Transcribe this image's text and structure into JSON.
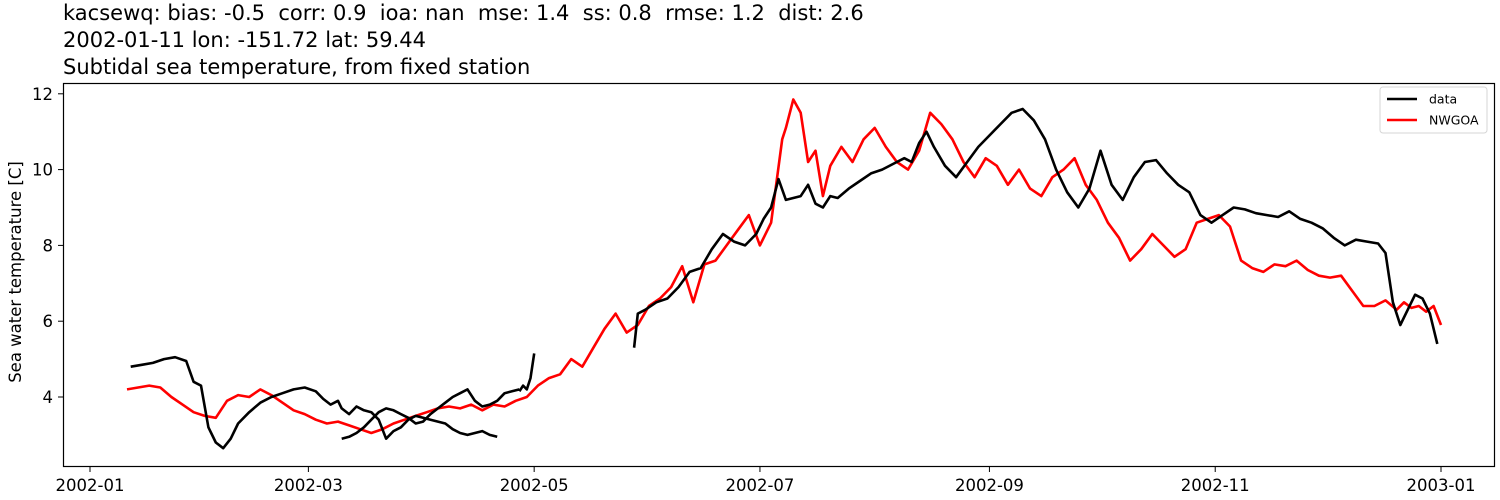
{
  "title": {
    "line1": "kacsewq: bias: -0.5  corr: 0.9  ioa: nan  mse: 1.4  ss: 0.8  rmse: 1.2  dist: 2.6",
    "line2": "2002-01-11 lon: -151.72 lat: 59.44",
    "line3": "Subtidal sea temperature, from fixed station"
  },
  "colors": {
    "data": "#000000",
    "model": "#ff0000",
    "axes": "#000000",
    "background": "#ffffff"
  },
  "chart_data": {
    "type": "line",
    "title": "kacsewq: bias: -0.5  corr: 0.9  ioa: nan  mse: 1.4  ss: 0.8  rmse: 1.2  dist: 2.6 / 2002-01-11 lon: -151.72 lat: 59.44 / Subtidal sea temperature, from fixed station",
    "xlabel": "",
    "ylabel": "Sea water temperature [C]",
    "xlim": [
      "2001-12-19",
      "2003-01-14"
    ],
    "ylim": [
      2.2,
      12.3
    ],
    "x_ticks": [
      "2002-01",
      "2002-03",
      "2002-05",
      "2002-07",
      "2002-09",
      "2002-11",
      "2003-01"
    ],
    "y_ticks": [
      4,
      6,
      8,
      10,
      12
    ],
    "grid": false,
    "legend": {
      "position": "upper right",
      "entries": [
        "data",
        "NWGOA"
      ]
    },
    "series": [
      {
        "name": "data",
        "color": "#000000",
        "segments": [
          {
            "x_day_of_year": [
              11,
              14,
              17,
              20,
              23,
              26,
              28,
              30,
              32,
              34,
              36,
              38,
              40,
              43,
              46,
              49,
              52,
              55,
              58,
              61,
              63,
              65,
              67,
              68,
              70,
              72,
              74,
              76,
              78,
              80,
              82,
              84,
              86,
              88,
              90,
              92,
              94,
              96,
              98,
              100,
              102,
              104,
              106,
              108,
              110
            ],
            "y": [
              4.8,
              4.85,
              4.9,
              5.0,
              5.05,
              4.95,
              4.4,
              4.3,
              3.2,
              2.8,
              2.65,
              2.9,
              3.3,
              3.6,
              3.85,
              4.0,
              4.1,
              4.2,
              4.25,
              4.15,
              3.95,
              3.8,
              3.9,
              3.7,
              3.55,
              3.75,
              3.65,
              3.6,
              3.4,
              2.9,
              3.1,
              3.2,
              3.4,
              3.5,
              3.45,
              3.4,
              3.35,
              3.3,
              3.15,
              3.05,
              3.0,
              3.05,
              3.1,
              3.0,
              2.95
            ]
          },
          {
            "x_day_of_year": [
              68,
              70,
              72,
              74,
              76,
              78,
              80,
              82,
              84,
              86,
              88,
              90,
              92,
              94,
              96,
              98,
              100,
              102,
              104,
              106,
              108,
              110,
              112,
              114,
              116
            ],
            "y": [
              2.9,
              2.95,
              3.05,
              3.2,
              3.4,
              3.6,
              3.7,
              3.65,
              3.55,
              3.45,
              3.3,
              3.35,
              3.55,
              3.7,
              3.85,
              4.0,
              4.1,
              4.2,
              3.9,
              3.75,
              3.8,
              3.9,
              4.1,
              4.15,
              4.2
            ]
          },
          {
            "x_day_of_year": [
              116,
              117,
              118,
              119,
              120
            ],
            "y": [
              4.15,
              4.3,
              4.2,
              4.5,
              5.15
            ]
          },
          {
            "x_day_of_year": [
              147,
              148,
              150,
              153,
              156,
              159,
              162,
              165,
              168,
              171,
              174,
              177,
              180,
              182,
              184,
              186,
              188,
              190,
              192,
              194,
              196,
              198,
              200,
              202,
              205,
              208,
              211,
              214,
              217,
              220,
              222,
              224,
              226,
              228,
              231,
              234,
              237,
              240,
              243,
              246,
              249,
              252,
              255,
              258,
              261,
              264,
              267,
              270,
              273,
              276,
              279,
              282,
              285,
              288,
              291,
              294,
              297,
              300,
              303,
              306,
              309,
              312,
              315,
              318,
              321,
              324,
              327,
              330,
              333,
              336,
              339,
              342,
              345,
              348,
              350,
              352,
              354,
              356,
              358,
              360,
              362,
              364
            ],
            "y": [
              5.3,
              6.2,
              6.3,
              6.5,
              6.6,
              6.9,
              7.3,
              7.4,
              7.9,
              8.3,
              8.1,
              8.0,
              8.3,
              8.7,
              9.0,
              9.75,
              9.2,
              9.25,
              9.3,
              9.6,
              9.1,
              9.0,
              9.3,
              9.25,
              9.5,
              9.7,
              9.9,
              10.0,
              10.15,
              10.3,
              10.2,
              10.7,
              11.0,
              10.6,
              10.1,
              9.8,
              10.2,
              10.6,
              10.9,
              11.2,
              11.5,
              11.6,
              11.3,
              10.8,
              10.0,
              9.4,
              9.0,
              9.5,
              10.5,
              9.6,
              9.2,
              9.8,
              10.2,
              10.25,
              9.9,
              9.6,
              9.4,
              8.8,
              8.6,
              8.8,
              9.0,
              8.95,
              8.85,
              8.8,
              8.75,
              8.9,
              8.7,
              8.6,
              8.45,
              8.2,
              8.0,
              8.15,
              8.1,
              8.05,
              7.8,
              6.5,
              5.9,
              6.3,
              6.7,
              6.6,
              6.2,
              5.4
            ]
          }
        ]
      },
      {
        "name": "NWGOA",
        "color": "#ff0000",
        "x_day_of_year": [
          10,
          13,
          16,
          19,
          22,
          25,
          28,
          31,
          34,
          37,
          40,
          43,
          46,
          49,
          52,
          55,
          58,
          61,
          64,
          67,
          70,
          73,
          76,
          79,
          82,
          85,
          88,
          91,
          94,
          97,
          100,
          103,
          106,
          109,
          112,
          115,
          118,
          121,
          124,
          127,
          130,
          133,
          136,
          139,
          142,
          145,
          148,
          151,
          154,
          157,
          160,
          163,
          166,
          169,
          172,
          175,
          178,
          181,
          184,
          187,
          188,
          190,
          192,
          194,
          196,
          198,
          200,
          203,
          206,
          209,
          212,
          215,
          218,
          221,
          224,
          227,
          230,
          233,
          236,
          239,
          242,
          245,
          248,
          251,
          254,
          257,
          260,
          263,
          266,
          269,
          272,
          275,
          278,
          281,
          284,
          287,
          290,
          293,
          296,
          299,
          302,
          305,
          308,
          311,
          314,
          317,
          320,
          323,
          326,
          329,
          332,
          335,
          338,
          341,
          344,
          347,
          350,
          353,
          355,
          357,
          359,
          361,
          363,
          365
        ],
        "y": [
          4.2,
          4.25,
          4.3,
          4.25,
          4.0,
          3.8,
          3.6,
          3.5,
          3.45,
          3.9,
          4.05,
          4.0,
          4.2,
          4.05,
          3.85,
          3.65,
          3.55,
          3.4,
          3.3,
          3.35,
          3.25,
          3.15,
          3.05,
          3.15,
          3.3,
          3.4,
          3.5,
          3.6,
          3.7,
          3.75,
          3.7,
          3.8,
          3.65,
          3.8,
          3.75,
          3.9,
          4.0,
          4.3,
          4.5,
          4.6,
          5.0,
          4.8,
          5.3,
          5.8,
          6.2,
          5.7,
          5.9,
          6.4,
          6.6,
          6.9,
          7.45,
          6.5,
          7.5,
          7.6,
          8.0,
          8.4,
          8.8,
          8.0,
          8.6,
          10.8,
          11.1,
          11.85,
          11.5,
          10.2,
          10.5,
          9.3,
          10.1,
          10.6,
          10.2,
          10.8,
          11.1,
          10.6,
          10.2,
          10.0,
          10.5,
          11.5,
          11.2,
          10.8,
          10.2,
          9.8,
          10.3,
          10.1,
          9.6,
          10.0,
          9.5,
          9.3,
          9.8,
          10.0,
          10.3,
          9.6,
          9.2,
          8.6,
          8.2,
          7.6,
          7.9,
          8.3,
          8.0,
          7.7,
          7.9,
          8.6,
          8.7,
          8.8,
          8.5,
          7.6,
          7.4,
          7.3,
          7.5,
          7.45,
          7.6,
          7.35,
          7.2,
          7.15,
          7.2,
          6.8,
          6.4,
          6.4,
          6.55,
          6.3,
          6.5,
          6.35,
          6.4,
          6.25,
          6.4,
          5.9,
          5.6
        ]
      }
    ]
  }
}
